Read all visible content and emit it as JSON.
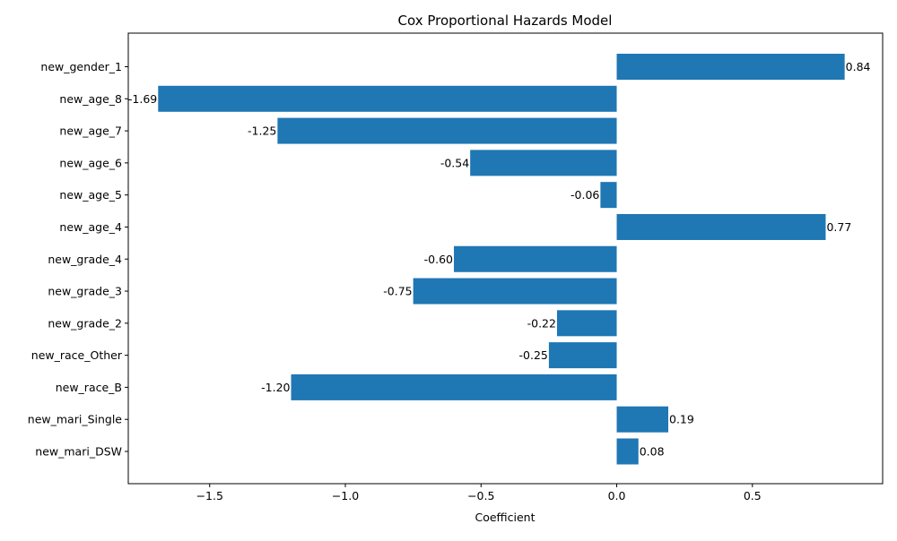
{
  "chart_data": {
    "type": "bar",
    "orientation": "horizontal",
    "title": "Cox Proportional Hazards Model",
    "xlabel": "Coefficient",
    "ylabel": "",
    "categories": [
      "new_gender_1",
      "new_age_8",
      "new_age_7",
      "new_age_6",
      "new_age_5",
      "new_age_4",
      "new_grade_4",
      "new_grade_3",
      "new_grade_2",
      "new_race_Other",
      "new_race_B",
      "new_mari_Single",
      "new_mari_DSW"
    ],
    "values": [
      0.84,
      -1.69,
      -1.25,
      -0.54,
      -0.06,
      0.77,
      -0.6,
      -0.75,
      -0.22,
      -0.25,
      -1.2,
      0.19,
      0.08
    ],
    "data_labels": [
      "0.84",
      "-1.69",
      "-1.25",
      "-0.54",
      "-0.06",
      "0.77",
      "-0.60",
      "-0.75",
      "-0.22",
      "-0.25",
      "-1.20",
      "0.19",
      "0.08"
    ],
    "x_ticks": [
      -1.5,
      -1.0,
      -0.5,
      0.0,
      0.5
    ],
    "x_tick_labels": [
      "−1.5",
      "−1.0",
      "−0.5",
      "0.0",
      "0.5"
    ],
    "xlim": [
      -1.8,
      0.98
    ],
    "grid": false,
    "legend": "none",
    "bar_color": "#1f77b4"
  }
}
